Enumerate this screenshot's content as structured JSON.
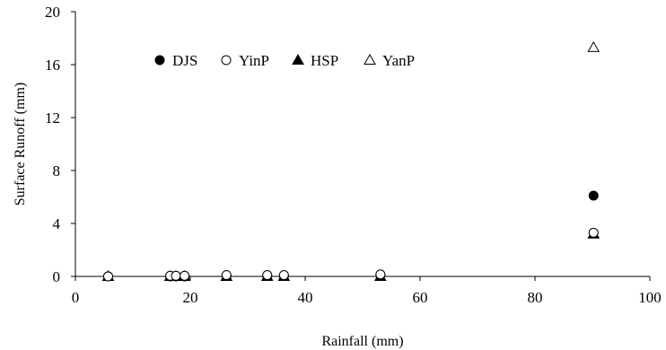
{
  "chart_data": {
    "type": "scatter",
    "xlabel": "Rainfall (mm)",
    "ylabel": "Surface Runoff (mm)",
    "xlim": [
      0,
      100
    ],
    "ylim": [
      0,
      20
    ],
    "xticks": [
      0,
      20,
      40,
      60,
      80,
      100
    ],
    "yticks": [
      0,
      4,
      8,
      12,
      16,
      20
    ],
    "x_tick_labels": [
      "0",
      "20",
      "40",
      "60",
      "80",
      "100"
    ],
    "y_tick_labels": [
      "0",
      "4",
      "8",
      "12",
      "16",
      "20"
    ],
    "grid": false,
    "legend_position": "top-center",
    "series": [
      {
        "name": "DJS",
        "marker": "filled-circle",
        "x": [
          5.7,
          16.5,
          17.5,
          19.0,
          26.3,
          33.4,
          36.3,
          53.1,
          90.2
        ],
        "y": [
          0.0,
          0.0,
          0.0,
          0.0,
          0.05,
          0.05,
          0.05,
          0.1,
          6.1
        ]
      },
      {
        "name": "YinP",
        "marker": "open-circle",
        "x": [
          5.7,
          16.5,
          17.5,
          19.0,
          26.3,
          33.4,
          36.3,
          53.1,
          90.2
        ],
        "y": [
          0.0,
          0.05,
          0.05,
          0.05,
          0.1,
          0.1,
          0.1,
          0.15,
          3.3
        ]
      },
      {
        "name": "HSP",
        "marker": "filled-triangle",
        "x": [
          5.7,
          16.5,
          17.5,
          19.0,
          26.3,
          33.4,
          36.3,
          53.1,
          90.2
        ],
        "y": [
          0.0,
          0.0,
          0.0,
          0.0,
          0.0,
          0.0,
          0.0,
          0.0,
          3.2
        ]
      },
      {
        "name": "YanP",
        "marker": "open-triangle",
        "x": [
          90.2
        ],
        "y": [
          17.3
        ]
      }
    ]
  }
}
